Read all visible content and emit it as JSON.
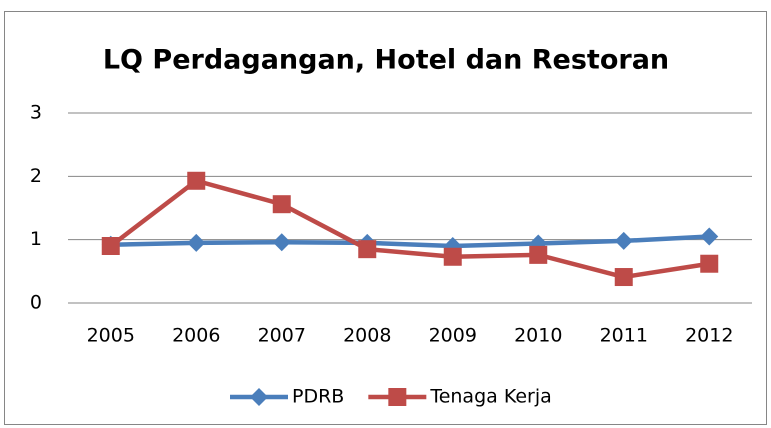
{
  "chart_data": {
    "type": "line",
    "title": "LQ Perdagangan, Hotel dan Restoran",
    "categories": [
      "2005",
      "2006",
      "2007",
      "2008",
      "2009",
      "2010",
      "2011",
      "2012"
    ],
    "series": [
      {
        "name": "PDRB",
        "color": "#4a7ebb",
        "marker": "diamond",
        "values": [
          0.92,
          0.95,
          0.96,
          0.95,
          0.9,
          0.94,
          0.98,
          1.05
        ]
      },
      {
        "name": "Tenaga Kerja",
        "color": "#be4b48",
        "marker": "square",
        "values": [
          0.9,
          1.93,
          1.56,
          0.85,
          0.73,
          0.76,
          0.41,
          0.62
        ]
      }
    ],
    "ylim": [
      0,
      3
    ],
    "yticks": [
      0,
      1,
      2,
      3
    ],
    "grid": true,
    "legend": "bottom"
  }
}
